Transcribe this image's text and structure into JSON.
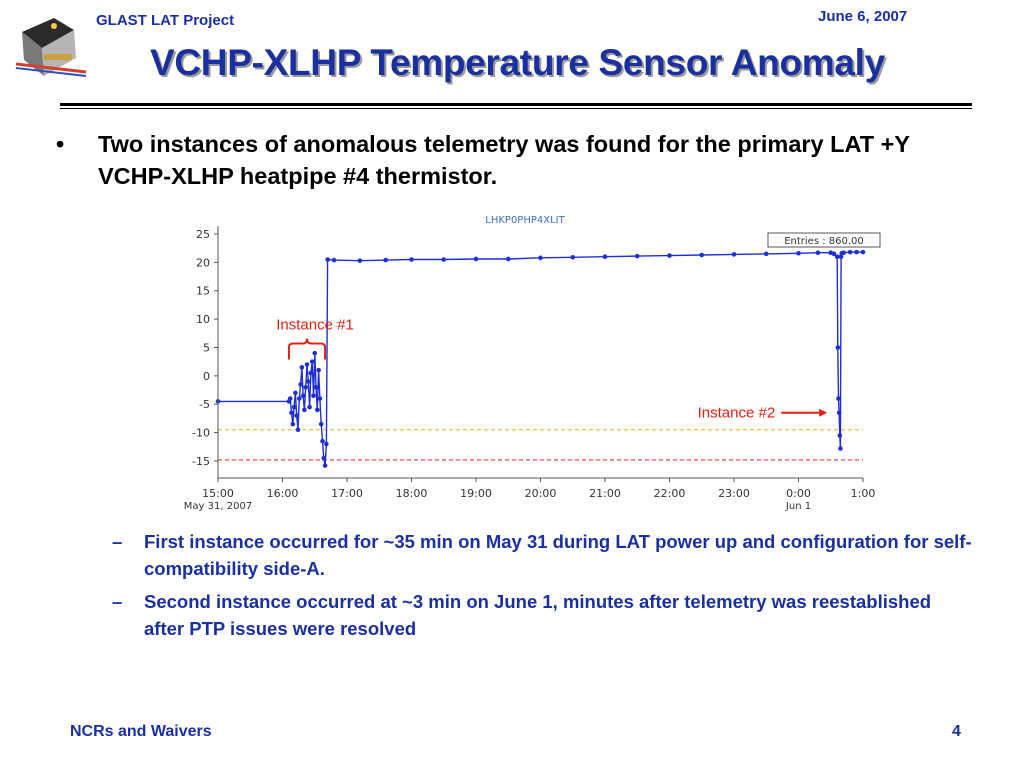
{
  "header": {
    "project": "GLAST LAT Project",
    "date": "June 6, 2007"
  },
  "slide": {
    "title": "VCHP-XLHP Temperature Sensor Anomaly",
    "bullet": "Two instances of anomalous telemetry was found for the primary LAT +Y VCHP-XLHP heatpipe #4 thermistor.",
    "sub_bullets": [
      "First instance occurred for ~35 min on May 31 during LAT power up and configuration for self-compatibility side-A.",
      "Second instance occurred at ~3 min on June 1, minutes after telemetry was reestablished after PTP issues were resolved"
    ]
  },
  "footer": {
    "left": "NCRs and Waivers",
    "page": "4"
  },
  "colors": {
    "accent": "#1a2fa0",
    "data": "#1f2fd0",
    "annotation": "#e02010",
    "threshold_yellow": "#f0c040",
    "threshold_red": "#e05050"
  },
  "chart_data": {
    "type": "line",
    "title": "LHKP0PHP4XLIT",
    "stats_box": "Entries : 860.00",
    "xlim": [
      15.0,
      25.0
    ],
    "ylim": [
      -18,
      25
    ],
    "y_ticks": [
      25,
      20,
      15,
      10,
      5,
      0,
      -5,
      -10,
      -15
    ],
    "x_ticks": [
      {
        "value": 15,
        "label": "15:00"
      },
      {
        "value": 16,
        "label": "16:00"
      },
      {
        "value": 17,
        "label": "17:00"
      },
      {
        "value": 18,
        "label": "18:00"
      },
      {
        "value": 19,
        "label": "19:00"
      },
      {
        "value": 20,
        "label": "20:00"
      },
      {
        "value": 21,
        "label": "21:00"
      },
      {
        "value": 22,
        "label": "22:00"
      },
      {
        "value": 23,
        "label": "23:00"
      },
      {
        "value": 24,
        "label": "0:00"
      },
      {
        "value": 25,
        "label": "1:00"
      }
    ],
    "x_sublabels": [
      {
        "value": 15,
        "label": "May 31, 2007"
      },
      {
        "value": 24,
        "label": "Jun 1"
      }
    ],
    "thresholds": [
      {
        "y": -9.5,
        "color": "#f0c040"
      },
      {
        "y": -14.8,
        "color": "#e05050"
      }
    ],
    "series": [
      {
        "x": [
          15.0,
          16.1,
          16.12,
          16.14,
          16.16,
          16.18,
          16.2,
          16.22,
          16.24,
          16.26,
          16.28,
          16.3,
          16.32,
          16.34,
          16.36,
          16.38,
          16.4,
          16.42,
          16.44,
          16.46,
          16.48,
          16.5,
          16.52,
          16.54,
          16.56,
          16.58,
          16.6,
          16.62,
          16.64,
          16.66,
          16.68,
          16.7,
          16.8,
          17.2,
          17.6,
          18.0,
          18.5,
          19.0,
          19.5,
          20.0,
          20.5,
          21.0,
          21.5,
          22.0,
          22.5,
          23.0,
          23.5,
          24.0,
          24.3,
          24.5,
          24.55,
          24.6,
          24.61,
          24.62,
          24.63,
          24.64,
          24.65,
          24.66,
          24.67,
          24.7,
          24.8,
          24.9,
          25.0
        ],
        "y": [
          -4.5,
          -4.5,
          -4.0,
          -6.5,
          -8.5,
          -5.5,
          -3.0,
          -7.0,
          -9.5,
          -4.0,
          -1.5,
          1.5,
          -3.5,
          -6.0,
          -2.0,
          2.0,
          -1.0,
          -5.5,
          0.5,
          2.5,
          -3.5,
          4.0,
          -2.0,
          -6.0,
          1.0,
          -4.0,
          -8.5,
          -11.5,
          -14.5,
          -15.8,
          -12.0,
          20.5,
          20.4,
          20.3,
          20.4,
          20.5,
          20.5,
          20.6,
          20.6,
          20.8,
          20.9,
          21.0,
          21.1,
          21.2,
          21.3,
          21.4,
          21.5,
          21.6,
          21.7,
          21.7,
          21.5,
          21.0,
          5.0,
          -4.0,
          -6.5,
          -10.5,
          -12.8,
          21.0,
          21.6,
          21.7,
          21.8,
          21.8,
          21.8
        ]
      }
    ],
    "annotations": [
      {
        "label": "Instance #1",
        "x": 16.5,
        "y": 5
      },
      {
        "label": "Instance #2",
        "x": 24.6,
        "y": -6.5
      }
    ]
  }
}
